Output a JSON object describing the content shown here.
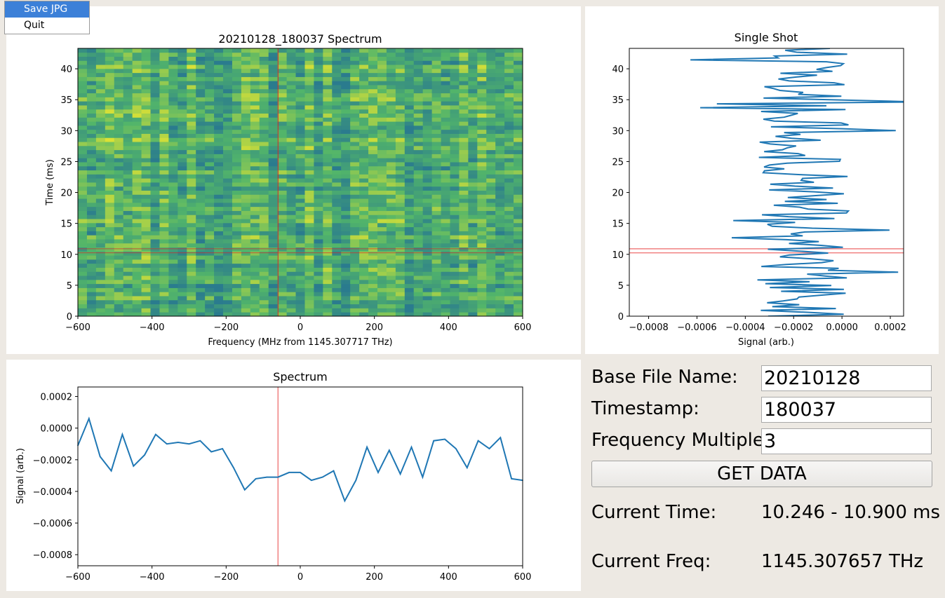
{
  "menu": {
    "items": [
      "Save JPG",
      "Quit"
    ],
    "selected_index": 0
  },
  "controls": {
    "base_file_name_label": "Base File Name:",
    "base_file_name_value": "20210128",
    "timestamp_label": "Timestamp:",
    "timestamp_value": "180037",
    "freq_multiple_label": "Frequency Multiple:",
    "freq_multiple_value": "3",
    "get_data_label": "GET DATA",
    "current_time_label": "Current Time:",
    "current_time_value": "10.246 - 10.900 ms",
    "current_freq_label": "Current Freq:",
    "current_freq_value": "1145.307657 THz"
  },
  "colors": {
    "heatmap_low": "#2a7b8e",
    "heatmap_mid": "#52b56a",
    "heatmap_high": "#e8e530",
    "line": "#1f77b4",
    "marker": "#f08080",
    "spectrum_marker": "#d62728"
  },
  "chart_data": [
    {
      "type": "heatmap",
      "title": "20210128_180037 Spectrum",
      "xlabel": "Frequency (MHz from 1145.307717 THz)",
      "ylabel": "Time (ms)",
      "xlim": [
        -600,
        600
      ],
      "ylim": [
        0,
        43.3
      ],
      "xticks": [
        -600,
        -400,
        -200,
        0,
        200,
        400,
        600
      ],
      "xtick_labels": [
        "−600",
        "−400",
        "−200",
        "0",
        "200",
        "400",
        "600"
      ],
      "yticks": [
        0,
        5,
        10,
        15,
        20,
        25,
        30,
        35,
        40
      ],
      "ytick_labels": [
        "0",
        "5",
        "10",
        "15",
        "20",
        "25",
        "30",
        "35",
        "40"
      ],
      "freq_bins": 49,
      "time_rows": 66,
      "marker_freq": -60,
      "marker_time_range": [
        10.246,
        10.9
      ]
    },
    {
      "type": "line",
      "title": "Single Shot",
      "xlabel": "Signal (arb.)",
      "xlim": [
        -0.00088,
        0.000255
      ],
      "ylim": [
        0,
        43.3
      ],
      "xticks": [
        -0.0008,
        -0.0006,
        -0.0004,
        -0.0002,
        0.0,
        0.0002
      ],
      "xtick_labels": [
        "−0.0008",
        "−0.0006",
        "−0.0004",
        "−0.0002",
        "0.0000",
        "0.0002"
      ],
      "yticks": [
        0,
        5,
        10,
        15,
        20,
        25,
        30,
        35,
        40
      ],
      "ytick_labels": [
        "0",
        "5",
        "10",
        "15",
        "20",
        "25",
        "30",
        "35",
        "40"
      ],
      "series": [
        {
          "points": 140,
          "mean": -0.00016,
          "spread": 0.00019
        }
      ],
      "marker_times": [
        10.246,
        10.9
      ]
    },
    {
      "type": "line",
      "title": "Spectrum",
      "ylabel": "Signal (arb.)",
      "xlim": [
        -600,
        600
      ],
      "ylim": [
        -0.00087,
        0.00026
      ],
      "xticks": [
        -600,
        -400,
        -200,
        0,
        200,
        400,
        600
      ],
      "xtick_labels": [
        "−600",
        "−400",
        "−200",
        "0",
        "200",
        "400",
        "600"
      ],
      "yticks": [
        0.0002,
        0.0,
        -0.0002,
        -0.0004,
        -0.0006,
        -0.0008
      ],
      "ytick_labels": [
        "0.0002",
        "0.0000",
        "−0.0002",
        "−0.0004",
        "−0.0006",
        "−0.0008"
      ],
      "x": [
        -600,
        -570,
        -540,
        -510,
        -480,
        -450,
        -420,
        -390,
        -360,
        -330,
        -300,
        -270,
        -240,
        -210,
        -180,
        -150,
        -120,
        -90,
        -60,
        -30,
        0,
        30,
        60,
        90,
        120,
        150,
        180,
        210,
        240,
        270,
        300,
        330,
        360,
        390,
        420,
        450,
        480,
        510,
        540,
        570,
        600
      ],
      "series": [
        {
          "values": [
            -0.00011,
            6e-05,
            -0.00018,
            -0.00027,
            -4e-05,
            -0.00024,
            -0.00017,
            -4e-05,
            -0.0001,
            -9e-05,
            -0.0001,
            -8e-05,
            -0.00015,
            -0.00013,
            -0.00025,
            -0.00039,
            -0.00032,
            -0.00031,
            -0.00031,
            -0.00028,
            -0.00028,
            -0.00033,
            -0.00031,
            -0.00027,
            -0.00046,
            -0.00033,
            -0.00012,
            -0.00028,
            -0.00014,
            -0.00029,
            -0.00012,
            -0.00031,
            -8e-05,
            -7e-05,
            -0.00013,
            -0.00025,
            -8e-05,
            -0.00013,
            -6e-05,
            -0.00032,
            -0.00033
          ]
        }
      ],
      "marker_freq": -60
    }
  ]
}
